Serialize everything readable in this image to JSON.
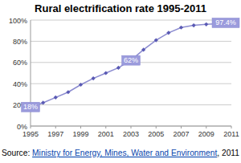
{
  "chart_data": {
    "type": "line",
    "title": "Rural electrification rate 1995-2011",
    "x": [
      1995,
      1996,
      1997,
      1998,
      1999,
      2000,
      2001,
      2002,
      2003,
      2004,
      2005,
      2006,
      2007,
      2008,
      2009,
      2010,
      2011
    ],
    "values": [
      18,
      22,
      27,
      32,
      39,
      45,
      50,
      55,
      62,
      72,
      81,
      88,
      93,
      95,
      96,
      96.5,
      97.4
    ],
    "value_labels": [
      "18%",
      null,
      null,
      null,
      null,
      null,
      null,
      null,
      "62%",
      null,
      null,
      null,
      null,
      null,
      null,
      null,
      "97.4%"
    ],
    "data_labels": true,
    "color": "#8c8cd0",
    "marker": "diamond",
    "grid": true,
    "xlim": [
      1995,
      2011
    ],
    "xticks": [
      1995,
      1997,
      1999,
      2001,
      2003,
      2005,
      2007,
      2009,
      2011
    ],
    "ylim": [
      0,
      100
    ],
    "yticks": [
      {
        "value": 0,
        "label": "0%"
      },
      {
        "value": 20,
        "label": "20%"
      },
      {
        "value": 40,
        "label": "40%"
      },
      {
        "value": 60,
        "label": "60%"
      },
      {
        "value": 80,
        "label": "80%"
      },
      {
        "value": 100,
        "label": "100%"
      }
    ],
    "source": {
      "prefix": "Source: ",
      "link": "Ministry for Energy, Mines, Water and Environment",
      "suffix": ", 2011"
    }
  }
}
